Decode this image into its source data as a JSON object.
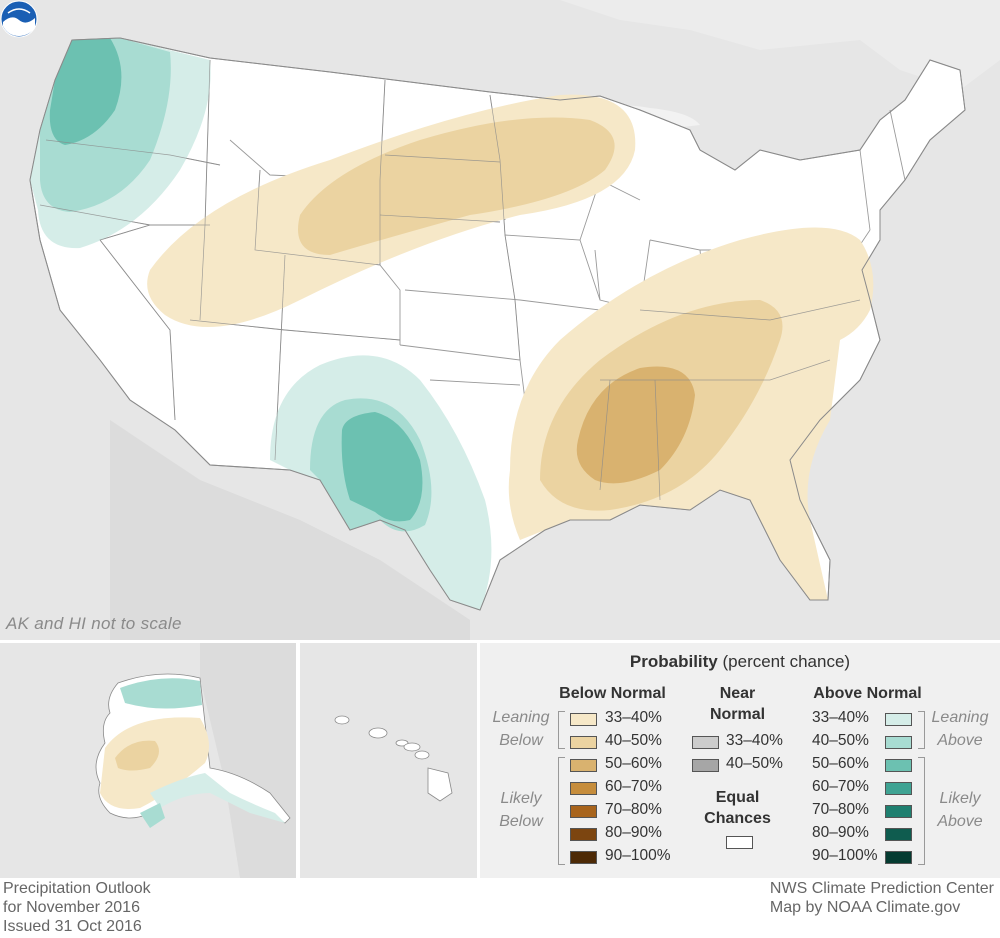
{
  "map": {
    "scale_note": "AK and HI not to scale",
    "logo": "noaa-logo",
    "colors": {
      "land_outside": "#e6e6e6",
      "water": "#f2f2f2",
      "equal_chances": "#ffffff",
      "below_33_40": "#f6e8c8",
      "below_40_50": "#ebd3a1",
      "below_50_60": "#d9b26f",
      "above_33_40": "#d5ede8",
      "above_40_50": "#a8dcd2",
      "above_50_60": "#6cc1b1",
      "near_33_40": "#cccccc",
      "near_40_50": "#a6a6a6"
    }
  },
  "legend": {
    "title_bold": "Probability",
    "title_rest": "(percent chance)",
    "below": {
      "heading": "Below Normal",
      "leaning_label": [
        "Leaning",
        "Below"
      ],
      "likely_label": [
        "Likely",
        "Below"
      ],
      "rows": [
        {
          "label": "33–40%",
          "color": "#f6e8c8"
        },
        {
          "label": "40–50%",
          "color": "#ebd3a1"
        },
        {
          "label": "50–60%",
          "color": "#d9b26f"
        },
        {
          "label": "60–70%",
          "color": "#c68d3c"
        },
        {
          "label": "70–80%",
          "color": "#a8641c"
        },
        {
          "label": "80–90%",
          "color": "#7c4510"
        },
        {
          "label": "90–100%",
          "color": "#4d2a06"
        }
      ]
    },
    "near": {
      "heading": [
        "Near",
        "Normal"
      ],
      "rows": [
        {
          "label": "33–40%",
          "color": "#cccccc"
        },
        {
          "label": "40–50%",
          "color": "#a6a6a6"
        }
      ],
      "equal_heading": [
        "Equal",
        "Chances"
      ],
      "equal_color": "#ffffff"
    },
    "above": {
      "heading": "Above Normal",
      "leaning_label": [
        "Leaning",
        "Above"
      ],
      "likely_label": [
        "Likely",
        "Above"
      ],
      "rows": [
        {
          "label": "33–40%",
          "color": "#d5ede8"
        },
        {
          "label": "40–50%",
          "color": "#a8dcd2"
        },
        {
          "label": "50–60%",
          "color": "#6cc1b1"
        },
        {
          "label": "60–70%",
          "color": "#3fa393"
        },
        {
          "label": "70–80%",
          "color": "#1f8070"
        },
        {
          "label": "80–90%",
          "color": "#0f5c4f"
        },
        {
          "label": "90–100%",
          "color": "#053b31"
        }
      ]
    }
  },
  "footer": {
    "left": [
      "Precipitation Outlook",
      "for November 2016",
      "Issued 31 Oct 2016"
    ],
    "right": [
      "NWS Climate Prediction Center",
      "Map by NOAA Climate.gov"
    ]
  }
}
